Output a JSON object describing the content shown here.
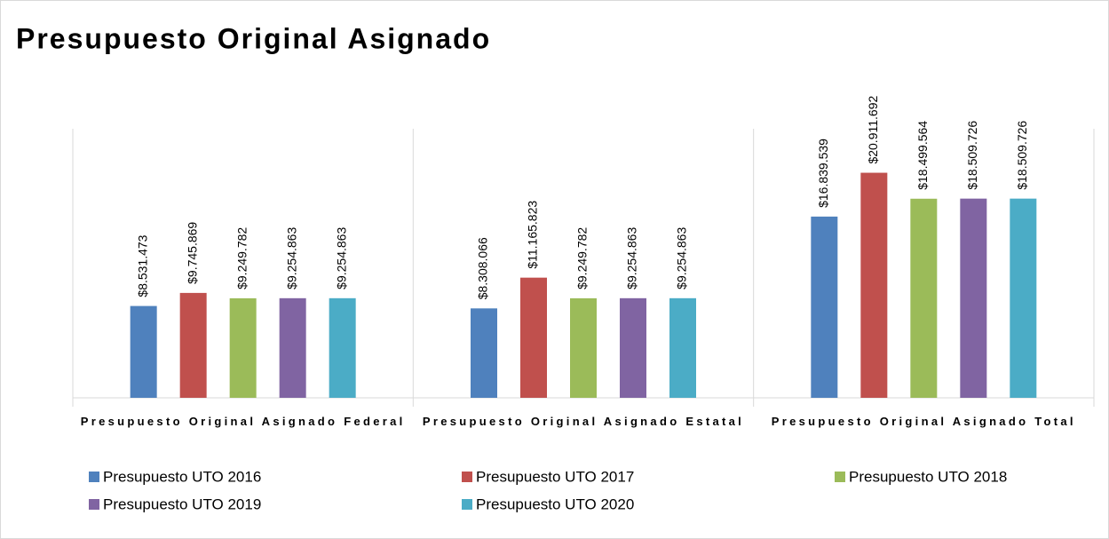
{
  "chart_data": {
    "type": "bar",
    "title": "Presupuesto Original Asignado",
    "categories": [
      "Presupuesto Original Asignado Federal",
      "Presupuesto Original Asignado Estatal",
      "Presupuesto Original Asignado Total"
    ],
    "series": [
      {
        "name": "Presupuesto UTO 2016",
        "color": "#4f81bd",
        "values": [
          8531473,
          8308066,
          16839539
        ],
        "value_labels": [
          "$8.531.473",
          "$8.308.066",
          "$16.839.539"
        ]
      },
      {
        "name": "Presupuesto UTO 2017",
        "color": "#c0504d",
        "values": [
          9745869,
          11165823,
          20911692
        ],
        "value_labels": [
          "$9.745.869",
          "$11.165.823",
          "$20.911.692"
        ]
      },
      {
        "name": "Presupuesto UTO 2018",
        "color": "#9bbb59",
        "values": [
          9249782,
          9249782,
          18499564
        ],
        "value_labels": [
          "$9.249.782",
          "$9.249.782",
          "$18.499.564"
        ]
      },
      {
        "name": "Presupuesto UTO 2019",
        "color": "#8064a2",
        "values": [
          9254863,
          9254863,
          18509726
        ],
        "value_labels": [
          "$9.254.863",
          "$9.254.863",
          "$18.509.726"
        ]
      },
      {
        "name": "Presupuesto UTO 2020",
        "color": "#4bacc6",
        "values": [
          9254863,
          9254863,
          18509726
        ],
        "value_labels": [
          "$9.254.863",
          "$9.254.863",
          "$18.509.726"
        ]
      }
    ],
    "ylim": [
      0,
      25000000
    ],
    "legend": "bottom"
  }
}
